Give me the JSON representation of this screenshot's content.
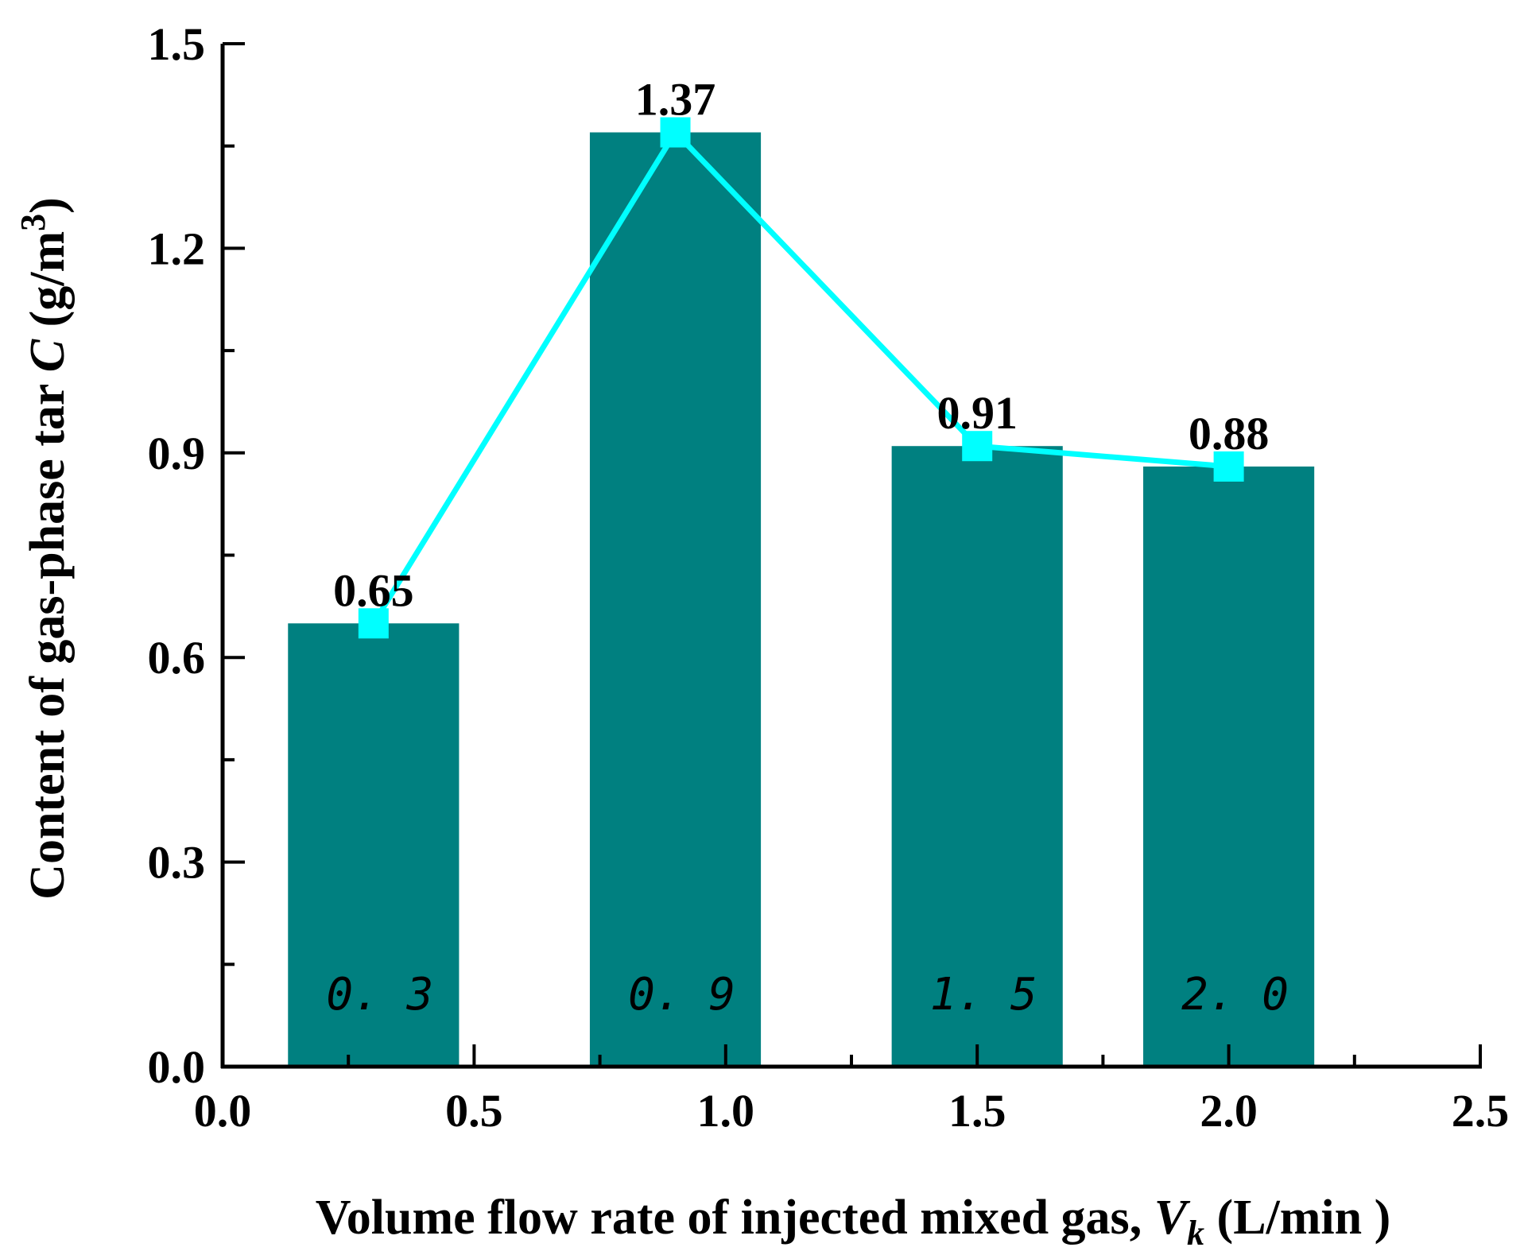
{
  "chart_data": {
    "type": "bar",
    "colors": {
      "bar": "#008080",
      "line": "#00FFFF",
      "axis": "#000000"
    },
    "x_axis": {
      "title": "Volume flow rate of injected mixed gas, ",
      "title_var": "V",
      "title_sub": "k",
      "title_units": " (L/min )",
      "range": [
        0.0,
        2.5
      ],
      "ticks": [
        "0.0",
        "0.5",
        "1.0",
        "1.5",
        "2.0",
        "2.5"
      ],
      "tick_values": [
        0.0,
        0.5,
        1.0,
        1.5,
        2.0,
        2.5
      ]
    },
    "y_axis": {
      "title": "Content of gas-phase tar ",
      "title_var": "C",
      "title_units": "  (g/m",
      "title_sup": "3",
      "title_close": ")",
      "range": [
        0.0,
        1.5
      ],
      "ticks": [
        "0.0",
        "0.3",
        "0.6",
        "0.9",
        "1.2",
        "1.5"
      ],
      "tick_values": [
        0.0,
        0.3,
        0.6,
        0.9,
        1.2,
        1.5
      ]
    },
    "bars": [
      {
        "x": 0.3,
        "value": 0.65,
        "label": "0.65",
        "category": "0. 3"
      },
      {
        "x": 0.9,
        "value": 1.37,
        "label": "1.37",
        "category": "0. 9"
      },
      {
        "x": 1.5,
        "value": 0.91,
        "label": "0.91",
        "category": "1. 5"
      },
      {
        "x": 2.0,
        "value": 0.88,
        "label": "0.88",
        "category": "2. 0"
      }
    ],
    "bar_width": 0.34,
    "series": [
      {
        "name": "Content of gas-phase tar",
        "type": "line",
        "x": [
          0.3,
          0.9,
          1.5,
          2.0
        ],
        "values": [
          0.65,
          1.37,
          0.91,
          0.88
        ]
      }
    ]
  }
}
